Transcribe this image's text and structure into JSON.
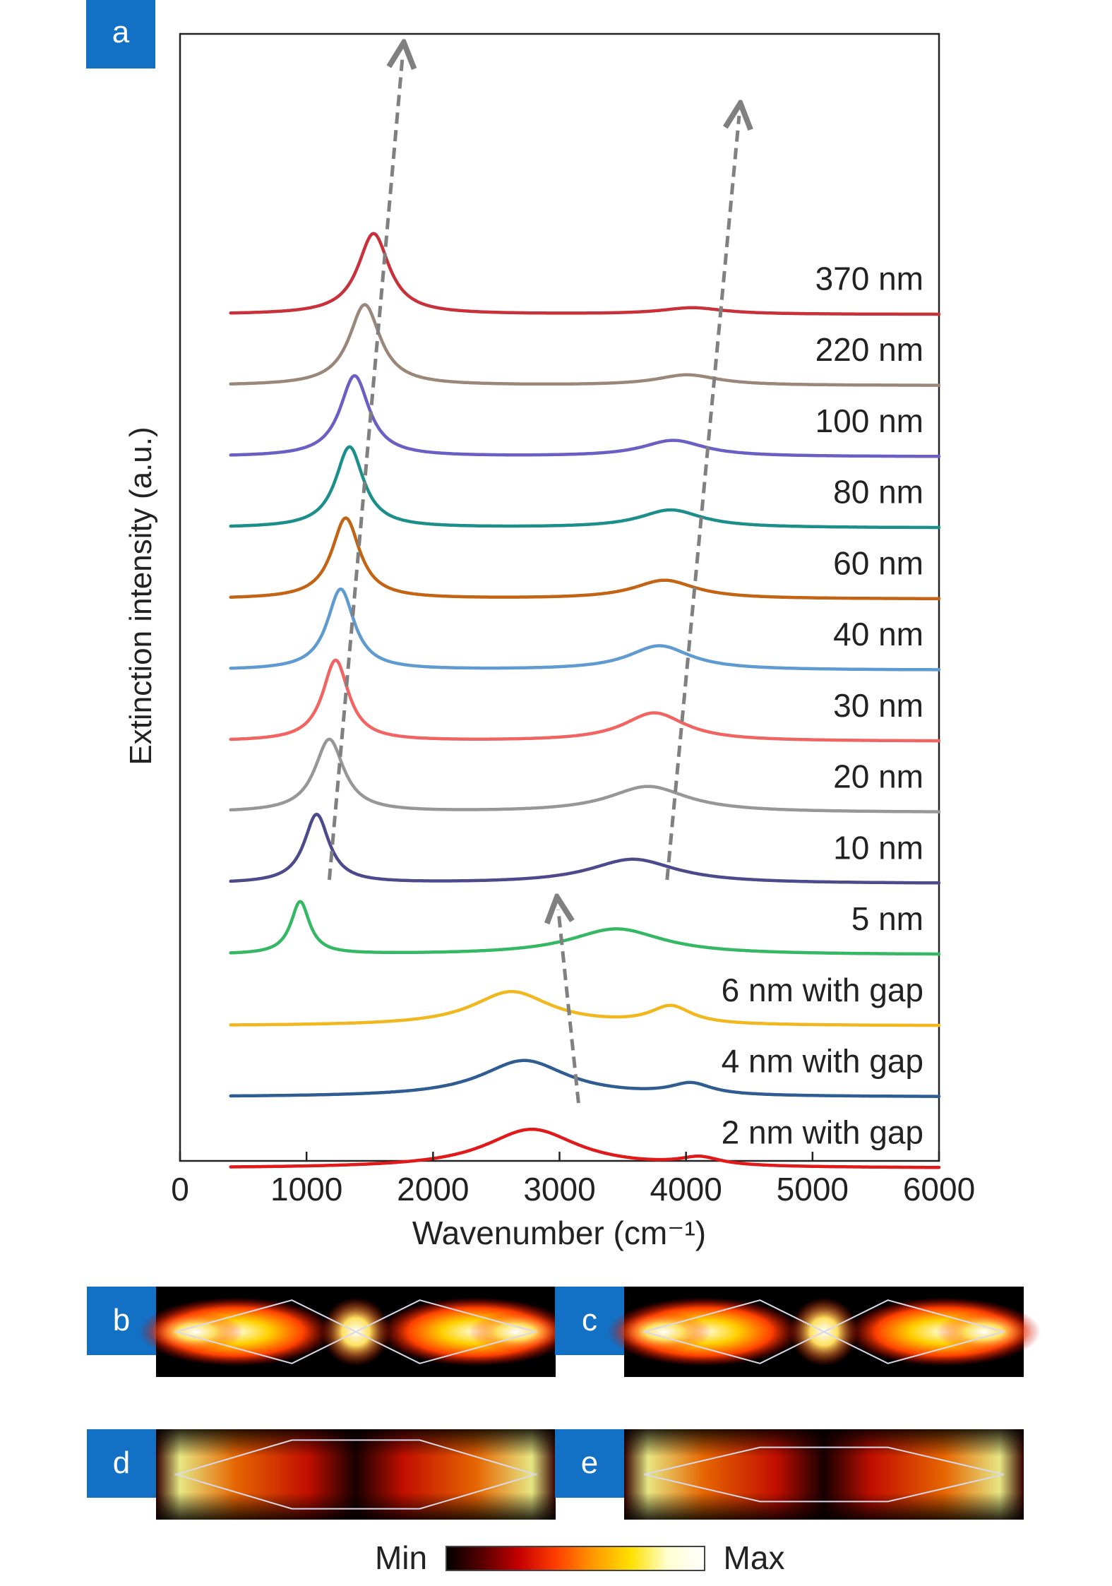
{
  "chart_data": {
    "type": "line",
    "panel_label": "a",
    "xlabel": "Wavenumber (cm⁻¹)",
    "ylabel": "Extinction intensity (a.u.)",
    "xlim": [
      0,
      6000
    ],
    "xticks": [
      0,
      1000,
      2000,
      3000,
      4000,
      5000,
      6000
    ],
    "xtick_labels": [
      "0",
      "1000",
      "2000",
      "3000",
      "4000",
      "5000",
      "6000"
    ],
    "stacked": true,
    "grid": false,
    "series": [
      {
        "name": "370 nm",
        "color": "#c8313a",
        "baseline": 0.86,
        "peaks": [
          {
            "x": 1530,
            "y": 1.0,
            "w": 150
          },
          {
            "x": 4050,
            "y": 0.08,
            "w": 300
          }
        ]
      },
      {
        "name": "220 nm",
        "color": "#9a877a",
        "baseline": 0.772,
        "peaks": [
          {
            "x": 1460,
            "y": 1.0,
            "w": 150
          },
          {
            "x": 4010,
            "y": 0.13,
            "w": 300
          }
        ]
      },
      {
        "name": "100 nm",
        "color": "#6a5fc2",
        "baseline": 0.684,
        "peaks": [
          {
            "x": 1380,
            "y": 1.0,
            "w": 140
          },
          {
            "x": 3900,
            "y": 0.2,
            "w": 300
          }
        ]
      },
      {
        "name": "80 nm",
        "color": "#1d8f8a",
        "baseline": 0.596,
        "peaks": [
          {
            "x": 1340,
            "y": 1.0,
            "w": 135
          },
          {
            "x": 3880,
            "y": 0.22,
            "w": 300
          }
        ]
      },
      {
        "name": "60 nm",
        "color": "#c26414",
        "baseline": 0.508,
        "peaks": [
          {
            "x": 1310,
            "y": 1.0,
            "w": 135
          },
          {
            "x": 3830,
            "y": 0.23,
            "w": 300
          }
        ]
      },
      {
        "name": "40 nm",
        "color": "#5f9ad0",
        "baseline": 0.42,
        "peaks": [
          {
            "x": 1270,
            "y": 1.0,
            "w": 130
          },
          {
            "x": 3790,
            "y": 0.3,
            "w": 300
          }
        ]
      },
      {
        "name": "30 nm",
        "color": "#f06462",
        "baseline": 0.332,
        "peaks": [
          {
            "x": 1230,
            "y": 1.0,
            "w": 125
          },
          {
            "x": 3750,
            "y": 0.35,
            "w": 300
          }
        ]
      },
      {
        "name": "20 nm",
        "color": "#979797",
        "baseline": 0.244,
        "peaks": [
          {
            "x": 1180,
            "y": 0.9,
            "w": 140
          },
          {
            "x": 3700,
            "y": 0.32,
            "w": 380
          }
        ]
      },
      {
        "name": "10 nm",
        "color": "#4d4a8c",
        "baseline": 0.156,
        "peaks": [
          {
            "x": 1080,
            "y": 0.85,
            "w": 120
          },
          {
            "x": 3580,
            "y": 0.3,
            "w": 420
          }
        ]
      },
      {
        "name": "5 nm",
        "color": "#35b864",
        "baseline": 0.068,
        "peaks": [
          {
            "x": 950,
            "y": 0.65,
            "w": 90
          },
          {
            "x": 3450,
            "y": 0.32,
            "w": 450
          }
        ]
      },
      {
        "name": "6 nm with gap",
        "color": "#f1b71e",
        "baseline": -0.02,
        "peaks": [
          {
            "x": 2620,
            "y": 0.42,
            "w": 380
          },
          {
            "x": 3880,
            "y": 0.22,
            "w": 200
          }
        ]
      },
      {
        "name": "4 nm with gap",
        "color": "#2f5d92",
        "baseline": -0.108,
        "peaks": [
          {
            "x": 2720,
            "y": 0.45,
            "w": 420
          },
          {
            "x": 4040,
            "y": 0.14,
            "w": 200
          }
        ]
      },
      {
        "name": "2 nm with gap",
        "color": "#e01a1a",
        "baseline": -0.196,
        "peaks": [
          {
            "x": 2780,
            "y": 0.48,
            "w": 450
          },
          {
            "x": 4110,
            "y": 0.1,
            "w": 200
          }
        ]
      }
    ],
    "trend_arrows": [
      {
        "x_from": 1180,
        "x_to": 1760
      },
      {
        "x_from": 3850,
        "x_to": 4420
      },
      {
        "x_from": 3150,
        "x_to": 2990
      }
    ]
  },
  "field_maps": {
    "panels": [
      {
        "label": "b",
        "variant": "sharp-gap"
      },
      {
        "label": "c",
        "variant": "sharp-gap"
      },
      {
        "label": "d",
        "variant": "flat"
      },
      {
        "label": "e",
        "variant": "flat-narrow"
      }
    ],
    "colorbar": {
      "min_label": "Min",
      "max_label": "Max",
      "colors": [
        "#000000",
        "#5a0000",
        "#c80000",
        "#ff4000",
        "#ff9a00",
        "#ffe000",
        "#ffffd0",
        "#ffffff"
      ]
    }
  }
}
